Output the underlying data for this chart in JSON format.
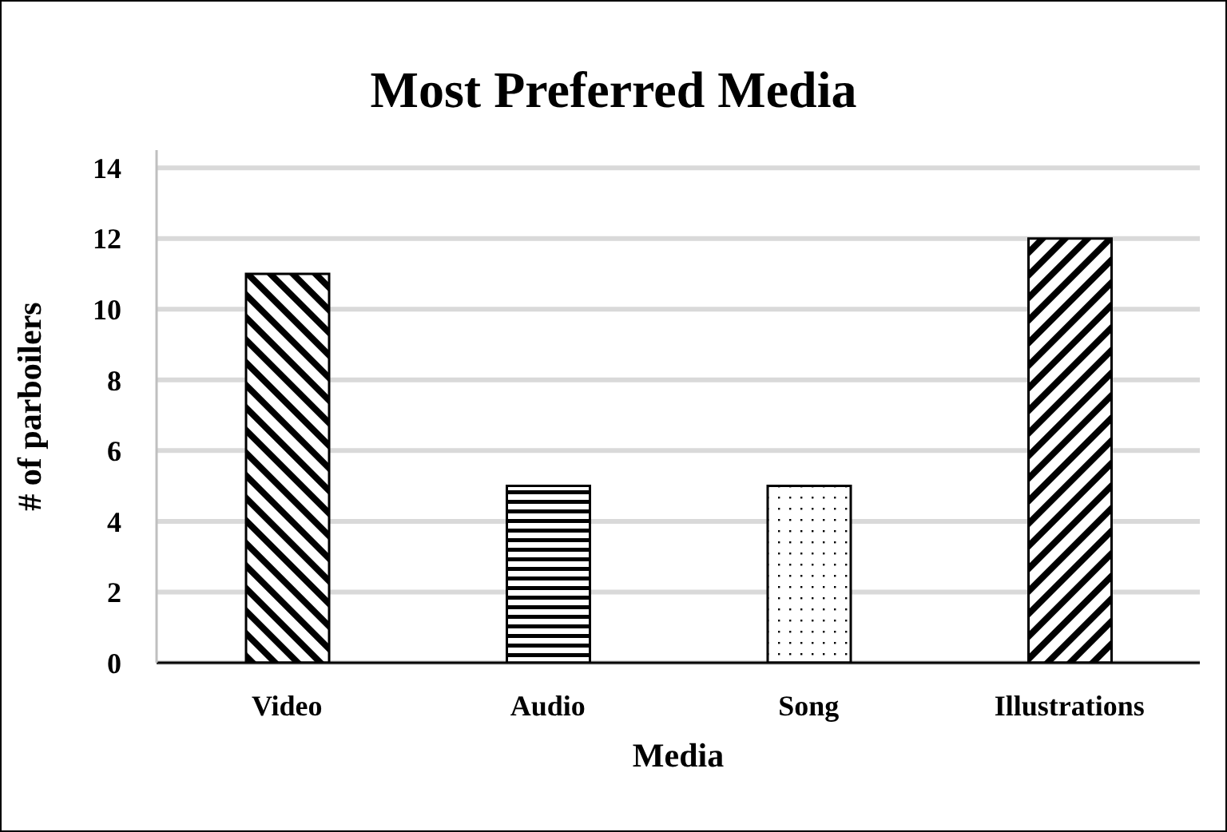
{
  "chart_data": {
    "type": "bar",
    "title": "Most Preferred Media",
    "xlabel": "Media",
    "ylabel": "# of parboilers",
    "categories": [
      "Video",
      "Audio",
      "Song",
      "Illustrations"
    ],
    "values": [
      11,
      5,
      5,
      12
    ],
    "color": "#000000",
    "ylim": [
      0,
      14.5
    ],
    "yticks": [
      0,
      2,
      4,
      6,
      8,
      10,
      12,
      14
    ],
    "grid": "y"
  }
}
